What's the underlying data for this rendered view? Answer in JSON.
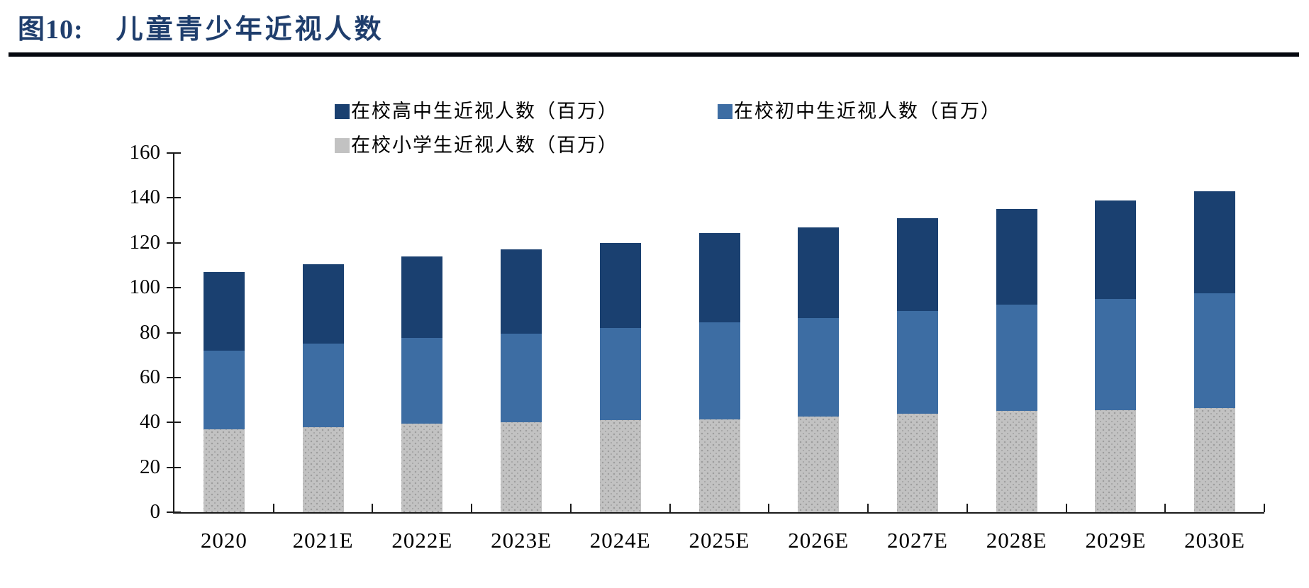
{
  "figure": {
    "label": "图10:",
    "title": "儿童青少年近视人数"
  },
  "chart_data": {
    "type": "bar",
    "subtype": "stacked-vertical",
    "title": "儿童青少年近视人数",
    "categories": [
      "2020",
      "2021E",
      "2022E",
      "2023E",
      "2024E",
      "2025E",
      "2026E",
      "2027E",
      "2028E",
      "2029E",
      "2030E"
    ],
    "series": [
      {
        "name": "在校小学生近视人数（百万）",
        "color": "#c2c2c2",
        "textured": true,
        "values": [
          37,
          38,
          39.5,
          40,
          41,
          41.5,
          42.5,
          44,
          45,
          45.5,
          46.5
        ]
      },
      {
        "name": "在校初中生近视人数（百万）",
        "color": "#3d6da3",
        "textured": false,
        "values": [
          35,
          37,
          38,
          39.5,
          41,
          43,
          44,
          45.5,
          47.5,
          49.5,
          51
        ]
      },
      {
        "name": "在校高中生近视人数（百万）",
        "color": "#1a4070",
        "textured": false,
        "values": [
          35,
          35.5,
          36.5,
          37.5,
          38,
          40,
          40.5,
          41.5,
          42.5,
          44,
          45.5
        ]
      }
    ],
    "stacked_totals": [
      107,
      110.5,
      114,
      117,
      120,
      124.5,
      127,
      131,
      135,
      139,
      143
    ],
    "xlabel": "",
    "ylabel": "",
    "ylim": [
      0,
      160
    ],
    "ytick_step": 20,
    "yticks": [
      0,
      20,
      40,
      60,
      80,
      100,
      120,
      140,
      160
    ],
    "grid": "off",
    "legend_position": "top",
    "legend_order": [
      "在校高中生近视人数（百万）",
      "在校初中生近视人数（百万）",
      "在校小学生近视人数（百万）"
    ]
  },
  "colors": {
    "title_navy": "#1f3e6d",
    "header_rule": "#05080f",
    "senior_high": "#1a4070",
    "junior_high": "#3d6da3",
    "primary": "#c2c2c2",
    "axis": "#1a1a1a",
    "background": "#ffffff"
  }
}
